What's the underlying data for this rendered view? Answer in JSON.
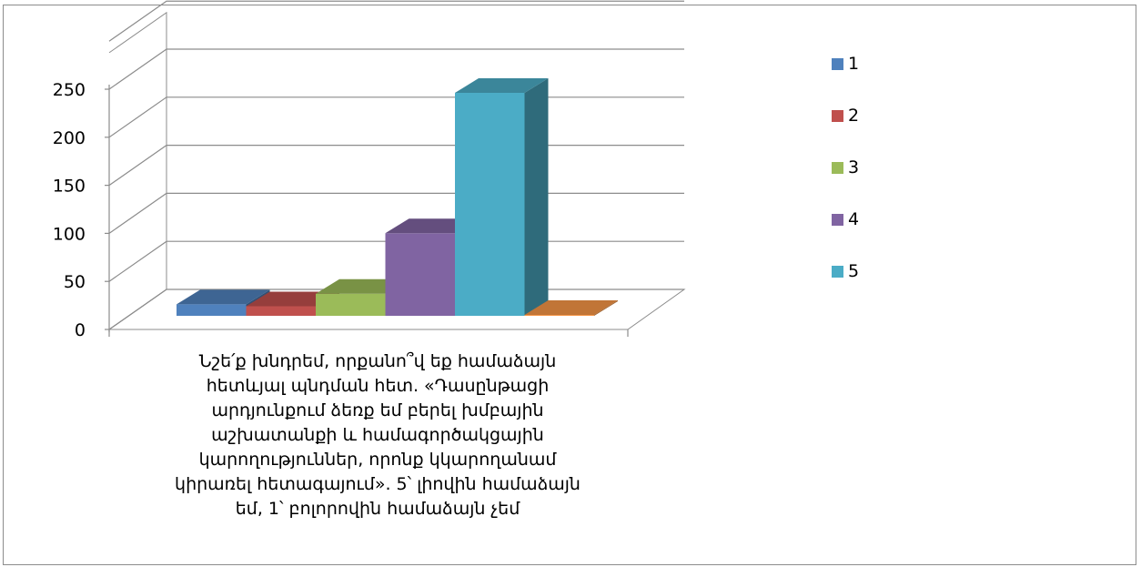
{
  "chart_data": {
    "type": "bar",
    "style": "3d-clustered-column",
    "categories": [
      "Նշե՛ք խնդրեմ, որքանո՞վ եք համաձայն\nհետևյալ պնդման հետ. «Դասընթացի\nարդյունքում ձեռք եմ բերել խմբային\nաշխատանքի և համագործակցային\nկարողություններ, որոնք կկարողանամ\nկիրառել հետագայում». 5՝ լիովին համաձայն\nեմ, 1՝ բոլորովին համաձայն չեմ"
    ],
    "series": [
      {
        "name": "1",
        "values": [
          12
        ],
        "color": "#4f81bd"
      },
      {
        "name": "2",
        "values": [
          10
        ],
        "color": "#c0504d"
      },
      {
        "name": "3",
        "values": [
          23
        ],
        "color": "#9bbb59"
      },
      {
        "name": "4",
        "values": [
          86
        ],
        "color": "#8064a2"
      },
      {
        "name": "5",
        "values": [
          232
        ],
        "color": "#4bacc6"
      },
      {
        "values": [
          1
        ],
        "color": "#f79646"
      }
    ],
    "y_ticks": [
      "0",
      "50",
      "100",
      "150",
      "200",
      "250"
    ],
    "ylim": [
      0,
      250
    ],
    "grid": true,
    "legend_position": "right"
  }
}
